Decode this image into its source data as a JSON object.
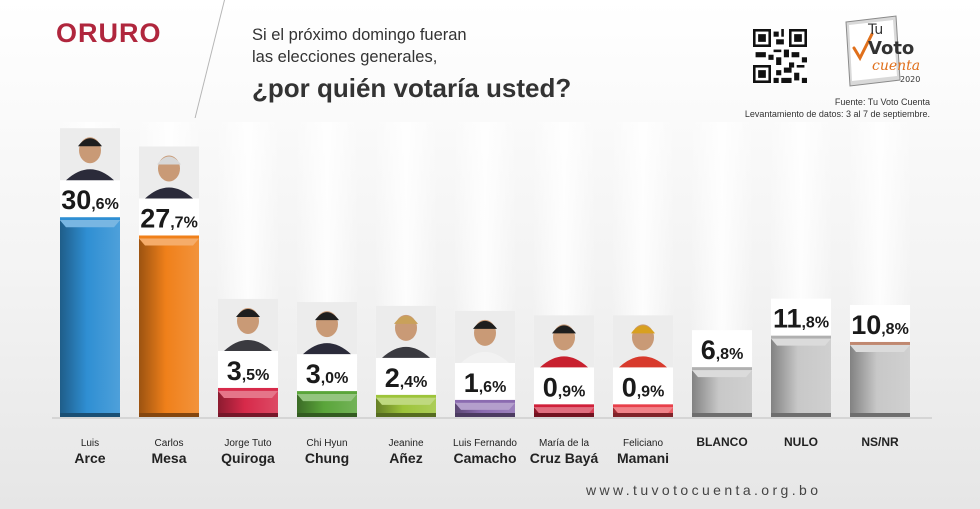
{
  "header": {
    "region": "ORURO",
    "question_line1": "Si el próximo domingo fueran",
    "question_line2": "las elecciones generales,",
    "question_line3": "¿por quién votaría usted?"
  },
  "branding": {
    "logo_line1": "Tu",
    "logo_line2": "Voto",
    "logo_line3": "cuenta",
    "logo_year": "2020",
    "source": "Fuente: Tu Voto Cuenta",
    "survey_dates": "Levantamiento de datos: 3 al 7 de septiembre.",
    "website": "www.tuvotocuenta.org.bo"
  },
  "chart_data": {
    "type": "bar",
    "categories": [
      "Luis Arce",
      "Carlos Mesa",
      "Jorge Tuto Quiroga",
      "Chi Hyun Chung",
      "Jeanine Añez",
      "Luis Fernando Camacho",
      "María de la Cruz Bayá",
      "Feliciano Mamani",
      "BLANCO",
      "NULO",
      "NS/NR"
    ],
    "series": [
      {
        "values": [
          30.6,
          27.7,
          3.5,
          3.0,
          2.4,
          1.6,
          0.9,
          0.9,
          6.8,
          11.8,
          10.8
        ],
        "data_labels": [
          {
            "int": "30",
            "dec": ",6%"
          },
          {
            "int": "27",
            "dec": ",7%"
          },
          {
            "int": "3",
            "dec": ",5%"
          },
          {
            "int": "3",
            "dec": ",0%"
          },
          {
            "int": "2",
            "dec": ",4%"
          },
          {
            "int": "1",
            "dec": ",6%"
          },
          {
            "int": "0",
            "dec": ",9%"
          },
          {
            "int": "0",
            "dec": ",9%"
          },
          {
            "int": "6",
            "dec": ",8%"
          },
          {
            "int": "11",
            "dec": ",8%"
          },
          {
            "int": "10",
            "dec": ",8%"
          }
        ]
      }
    ],
    "label_lines": [
      [
        "Luis",
        "Arce"
      ],
      [
        "Carlos",
        "Mesa"
      ],
      [
        "Jorge Tuto",
        "Quiroga"
      ],
      [
        "Chi Hyun",
        "Chung"
      ],
      [
        "Jeanine",
        "Añez"
      ],
      [
        "Luis Fernando",
        "Camacho"
      ],
      [
        "María de la",
        "Cruz Bayá"
      ],
      [
        "Feliciano",
        "Mamani"
      ],
      [
        "BLANCO"
      ],
      [
        "NULO"
      ],
      [
        "NS/NR"
      ]
    ],
    "colors": [
      "#2f8fd3",
      "#f0801a",
      "#d72a4a",
      "#5aa53a",
      "#9dc43a",
      "#8b6bb0",
      "#d0203a",
      "#e8404a",
      "#c8c8c8",
      "#c8c8c8",
      "#c8c8c8"
    ],
    "accent_colors": [
      "#2f8fd3",
      "#f0801a",
      "#d72a4a",
      "#5aa53a",
      "#9dc43a",
      "#8b6bb0",
      "#d0203a",
      "#e8404a",
      "#b0b0b0",
      "#b0b0b0",
      "#c08870"
    ],
    "photo_types": [
      "person",
      "person",
      "person",
      "person",
      "person",
      "person",
      "person",
      "person",
      "none",
      "none",
      "none"
    ],
    "ylim": [
      0,
      32
    ]
  }
}
